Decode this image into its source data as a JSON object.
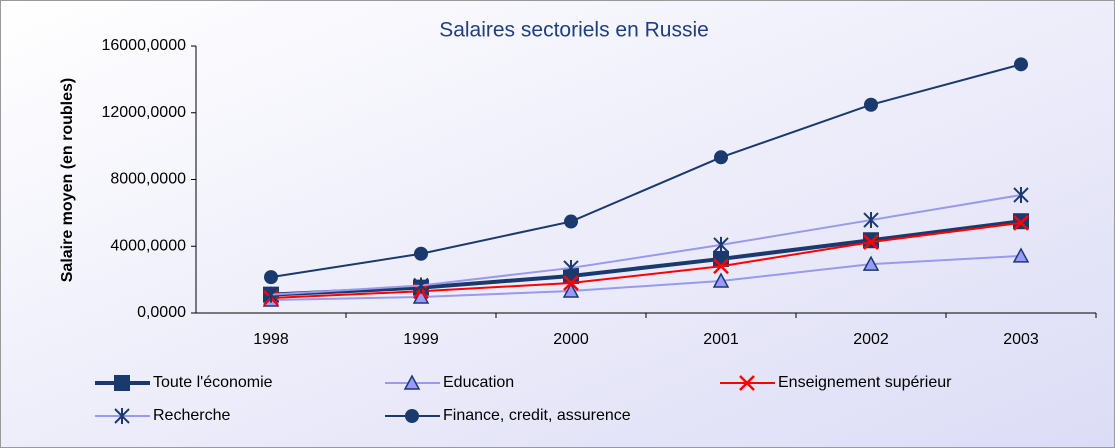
{
  "chart_data": {
    "type": "line",
    "title": "Salaires sectoriels en Russie",
    "y_label": "Salaire moyen (en roubles)",
    "categories": [
      "1998",
      "1999",
      "2000",
      "2001",
      "2002",
      "2003"
    ],
    "ylim": [
      0,
      16000
    ],
    "yticks": [
      {
        "value": 0,
        "label": "0,0000"
      },
      {
        "value": 4000,
        "label": "4000,0000"
      },
      {
        "value": 8000,
        "label": "8000,0000"
      },
      {
        "value": 12000,
        "label": "12000,0000"
      },
      {
        "value": 16000,
        "label": "16000,0000"
      }
    ],
    "series": [
      {
        "name": "Toute l'économie",
        "color": "#1a3a6e",
        "marker": "square",
        "line_width": 4,
        "values": [
          1100,
          1520,
          2220,
          3240,
          4360,
          5500
        ]
      },
      {
        "name": "Education",
        "color": "#9999ee",
        "marker": "triangle",
        "line_width": 2,
        "values": [
          780,
          960,
          1320,
          1920,
          2930,
          3420
        ]
      },
      {
        "name": "Enseignement supérieur",
        "color": "#ff0000",
        "marker": "cross",
        "line_width": 2,
        "values": [
          900,
          1300,
          1800,
          2800,
          4250,
          5400
        ]
      },
      {
        "name": "Recherche",
        "color": "#9999ee",
        "marker": "star",
        "line_width": 2,
        "values": [
          1100,
          1650,
          2700,
          4080,
          5570,
          7070
        ]
      },
      {
        "name": "Finance, credit, assurence",
        "color": "#1a3a6e",
        "marker": "circle",
        "line_width": 2,
        "values": [
          2150,
          3550,
          5480,
          9330,
          12480,
          14900
        ]
      }
    ]
  }
}
